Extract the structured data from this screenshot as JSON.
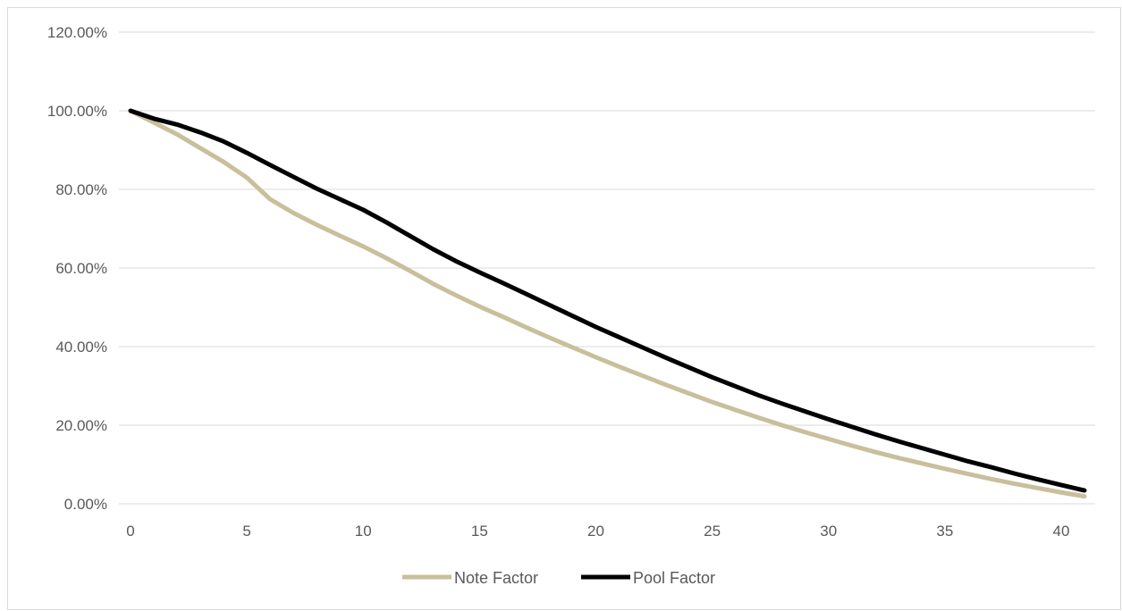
{
  "chart_data": {
    "type": "line",
    "title": "",
    "xlabel": "",
    "ylabel": "",
    "xlim": [
      0,
      41
    ],
    "ylim": [
      0,
      1.2
    ],
    "x_ticks": [
      0,
      5,
      10,
      15,
      20,
      25,
      30,
      35,
      40
    ],
    "y_ticks": [
      0,
      0.2,
      0.4,
      0.6,
      0.8,
      1.0,
      1.2
    ],
    "x_tick_labels": [
      "0",
      "5",
      "10",
      "15",
      "20",
      "25",
      "30",
      "35",
      "40"
    ],
    "y_tick_labels": [
      "0.00%",
      "20.00%",
      "40.00%",
      "60.00%",
      "80.00%",
      "100.00%",
      "120.00%"
    ],
    "grid": "horizontal",
    "legend_position": "bottom",
    "x": [
      0,
      1,
      2,
      3,
      4,
      5,
      6,
      7,
      8,
      9,
      10,
      11,
      12,
      13,
      14,
      15,
      16,
      17,
      18,
      19,
      20,
      21,
      22,
      23,
      24,
      25,
      26,
      27,
      28,
      29,
      30,
      31,
      32,
      33,
      34,
      35,
      36,
      37,
      38,
      39,
      40,
      41
    ],
    "series": [
      {
        "name": "Note Factor",
        "color": "#c9bf9c",
        "values": [
          1.0,
          0.97,
          0.94,
          0.905,
          0.87,
          0.83,
          0.775,
          0.74,
          0.71,
          0.682,
          0.655,
          0.625,
          0.593,
          0.56,
          0.53,
          0.502,
          0.476,
          0.449,
          0.423,
          0.398,
          0.373,
          0.349,
          0.326,
          0.303,
          0.281,
          0.259,
          0.239,
          0.219,
          0.2,
          0.182,
          0.165,
          0.148,
          0.132,
          0.117,
          0.103,
          0.089,
          0.076,
          0.063,
          0.051,
          0.04,
          0.029,
          0.019
        ]
      },
      {
        "name": "Pool Factor",
        "color": "#000000",
        "values": [
          1.0,
          0.98,
          0.965,
          0.945,
          0.922,
          0.893,
          0.862,
          0.832,
          0.802,
          0.775,
          0.748,
          0.716,
          0.682,
          0.648,
          0.617,
          0.589,
          0.562,
          0.534,
          0.506,
          0.478,
          0.45,
          0.424,
          0.398,
          0.372,
          0.347,
          0.322,
          0.299,
          0.276,
          0.255,
          0.235,
          0.215,
          0.196,
          0.177,
          0.159,
          0.142,
          0.125,
          0.108,
          0.093,
          0.077,
          0.062,
          0.048,
          0.034
        ]
      }
    ]
  }
}
